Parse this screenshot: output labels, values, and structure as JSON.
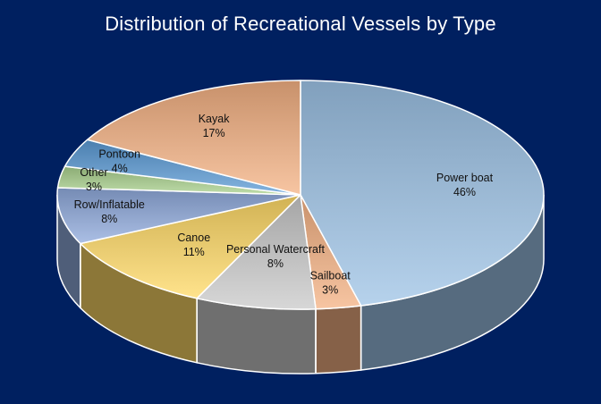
{
  "chart_data": {
    "type": "pie",
    "title": "Distribution of Recreational Vessels by Type",
    "categories": [
      "Power boat",
      "Sailboat",
      "Personal Watercraft",
      "Canoe",
      "Row/Inflatable",
      "Other",
      "Pontoon",
      "Kayak"
    ],
    "values": [
      46,
      3,
      8,
      11,
      8,
      3,
      4,
      17
    ],
    "labels": [
      "46%",
      "3%",
      "8%",
      "11%",
      "8%",
      "3%",
      "4%",
      "17%"
    ],
    "colors": [
      "#9dc3e6",
      "#f4b183",
      "#c9c9c9",
      "#ffd966",
      "#8faadc",
      "#a9d18e",
      "#5b9bd5",
      "#f4b183"
    ],
    "legend": "none",
    "style": "3d-pie"
  },
  "background_color": "#002060"
}
